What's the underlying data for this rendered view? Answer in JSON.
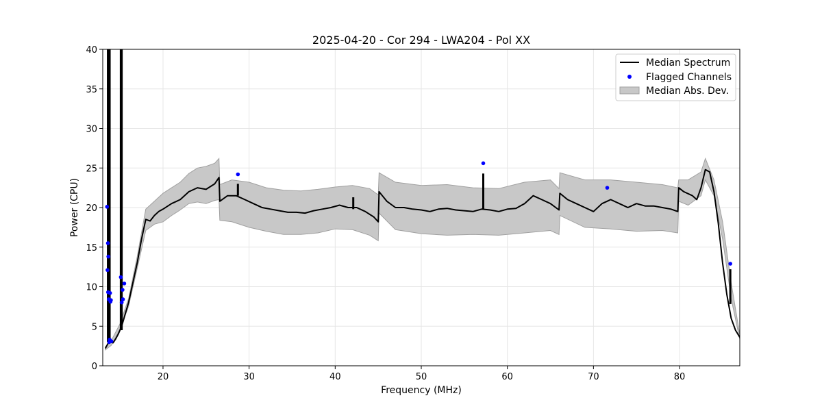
{
  "chart_data": {
    "type": "line",
    "title": "2025-04-20 - Cor 294 - LWA204 - Pol XX",
    "xlabel": "Frequency (MHz)",
    "ylabel": "Power (CPU)",
    "xlim": [
      13,
      87
    ],
    "ylim": [
      0,
      40
    ],
    "xticks": [
      20,
      30,
      40,
      50,
      60,
      70,
      80
    ],
    "yticks": [
      0,
      5,
      10,
      15,
      20,
      25,
      30,
      35,
      40
    ],
    "grid": true,
    "legend_position": "top-right",
    "legend": [
      "Median Spectrum",
      "Flagged Channels",
      "Median Abs. Dev."
    ],
    "colors": {
      "median": "#000000",
      "flagged": "#0000ff",
      "mad_fill": "#c8c8c8",
      "mad_edge": "#a0a0a0",
      "grid": "#e6e6e6"
    },
    "series": [
      {
        "name": "Median Spectrum",
        "x": [
          13.3,
          13.6,
          13.9,
          14.2,
          14.5,
          14.8,
          15.2,
          15.6,
          16.0,
          16.5,
          17.0,
          17.5,
          18.0,
          18.5,
          19.0,
          19.5,
          20.0,
          21.0,
          22.0,
          23.0,
          24.0,
          25.0,
          26.0,
          26.5,
          26.6,
          27.5,
          28.5,
          29.5,
          30.5,
          31.5,
          32.5,
          33.5,
          34.5,
          35.5,
          36.5,
          37.5,
          38.5,
          39.5,
          40.5,
          41.5,
          42.5,
          43.5,
          44.5,
          45.0,
          45.1,
          46.0,
          47.0,
          48.0,
          49.0,
          50.0,
          51.0,
          52.0,
          53.0,
          54.0,
          55.0,
          56.0,
          57.0,
          58.0,
          59.0,
          60.0,
          61.0,
          62.0,
          63.0,
          64.0,
          65.0,
          66.0,
          66.1,
          67.0,
          68.0,
          69.0,
          70.0,
          71.0,
          72.0,
          73.0,
          74.0,
          75.0,
          76.0,
          77.0,
          78.0,
          79.0,
          79.8,
          79.9,
          80.5,
          81.5,
          82.0,
          82.5,
          83.0,
          83.5,
          84.0,
          84.5,
          85.0,
          85.5,
          86.0,
          86.5,
          87.0
        ],
        "y": [
          2.2,
          2.8,
          3.0,
          2.9,
          3.4,
          4.0,
          5.0,
          6.5,
          8.0,
          10.5,
          13.0,
          16.0,
          18.5,
          18.3,
          19.0,
          19.5,
          19.8,
          20.5,
          21.0,
          22.0,
          22.5,
          22.3,
          23.0,
          23.8,
          20.8,
          21.5,
          21.5,
          21.0,
          20.5,
          20.0,
          19.8,
          19.6,
          19.4,
          19.4,
          19.3,
          19.6,
          19.8,
          20.0,
          20.3,
          20.0,
          20.0,
          19.5,
          18.8,
          18.2,
          22.0,
          20.8,
          20.0,
          20.0,
          19.8,
          19.7,
          19.5,
          19.8,
          19.9,
          19.7,
          19.6,
          19.5,
          19.8,
          19.7,
          19.5,
          19.8,
          19.9,
          20.5,
          21.5,
          21.0,
          20.5,
          19.7,
          21.8,
          21.0,
          20.5,
          20.0,
          19.5,
          20.5,
          21.0,
          20.5,
          20.0,
          20.5,
          20.2,
          20.2,
          20.0,
          19.8,
          19.5,
          22.5,
          22.0,
          21.5,
          21.0,
          22.5,
          24.8,
          24.5,
          22.0,
          18.0,
          13.0,
          9.0,
          6.0,
          4.5,
          3.6
        ]
      },
      {
        "name": "Median Abs. Dev.",
        "x": [
          13.3,
          14.0,
          15.0,
          16.0,
          17.0,
          18.0,
          19.0,
          20.0,
          21.0,
          22.0,
          23.0,
          24.0,
          25.0,
          26.0,
          26.5,
          26.6,
          28.0,
          30.0,
          32.0,
          34.0,
          36.0,
          38.0,
          40.0,
          42.0,
          44.0,
          45.0,
          45.1,
          47.0,
          50.0,
          53.0,
          56.0,
          59.0,
          62.0,
          65.0,
          66.0,
          66.1,
          69.0,
          72.0,
          75.0,
          78.0,
          79.8,
          79.9,
          81.0,
          82.5,
          83.0,
          84.0,
          85.0,
          86.0,
          87.0
        ],
        "upper": [
          2.4,
          3.2,
          5.3,
          8.5,
          13.8,
          19.8,
          20.8,
          21.8,
          22.5,
          23.2,
          24.3,
          25.0,
          25.2,
          25.6,
          26.2,
          22.9,
          23.5,
          23.2,
          22.5,
          22.2,
          22.1,
          22.3,
          22.6,
          22.8,
          22.4,
          21.6,
          24.4,
          23.2,
          22.8,
          22.9,
          22.5,
          22.4,
          23.2,
          23.5,
          22.4,
          24.4,
          23.5,
          23.5,
          23.2,
          22.9,
          22.5,
          23.5,
          23.5,
          24.5,
          26.2,
          23.5,
          18.2,
          10.5,
          3.9
        ],
        "lower": [
          2.0,
          2.6,
          4.6,
          7.5,
          12.3,
          17.1,
          17.9,
          18.2,
          19.0,
          19.7,
          20.5,
          20.7,
          20.5,
          20.9,
          21.0,
          18.4,
          18.2,
          17.5,
          17.0,
          16.6,
          16.6,
          16.8,
          17.3,
          17.2,
          16.5,
          15.8,
          19.3,
          17.2,
          16.7,
          16.5,
          16.6,
          16.5,
          16.8,
          17.1,
          16.6,
          19.0,
          17.5,
          17.3,
          17.0,
          17.1,
          16.8,
          20.8,
          20.3,
          21.5,
          23.5,
          21.5,
          16.0,
          8.5,
          3.3
        ]
      },
      {
        "name": "Flagged Channels",
        "x": [
          13.5,
          13.55,
          13.6,
          13.62,
          13.65,
          13.7,
          13.75,
          13.8,
          13.85,
          13.9,
          13.95,
          14.0,
          15.1,
          15.2,
          15.3,
          15.35,
          15.5,
          28.7,
          57.2,
          71.6,
          85.9
        ],
        "y": [
          20.1,
          12.1,
          15.5,
          9.3,
          13.8,
          8.4,
          3.0,
          3.3,
          9.2,
          8.1,
          8.3,
          3.1,
          11.2,
          8.0,
          9.6,
          8.4,
          10.4,
          24.2,
          25.6,
          22.5,
          12.9
        ]
      }
    ],
    "spikes": [
      {
        "x": 13.6,
        "y0": 3,
        "y1": 40
      },
      {
        "x": 13.8,
        "y0": 3,
        "y1": 40
      },
      {
        "x": 15.1,
        "y0": 4.5,
        "y1": 40
      },
      {
        "x": 15.2,
        "y0": 4.5,
        "y1": 40
      },
      {
        "x": 28.7,
        "y0": 21.5,
        "y1": 23.0
      },
      {
        "x": 42.1,
        "y0": 19.8,
        "y1": 21.3
      },
      {
        "x": 57.2,
        "y0": 19.8,
        "y1": 24.3
      },
      {
        "x": 85.9,
        "y0": 7.8,
        "y1": 12.2
      }
    ]
  }
}
